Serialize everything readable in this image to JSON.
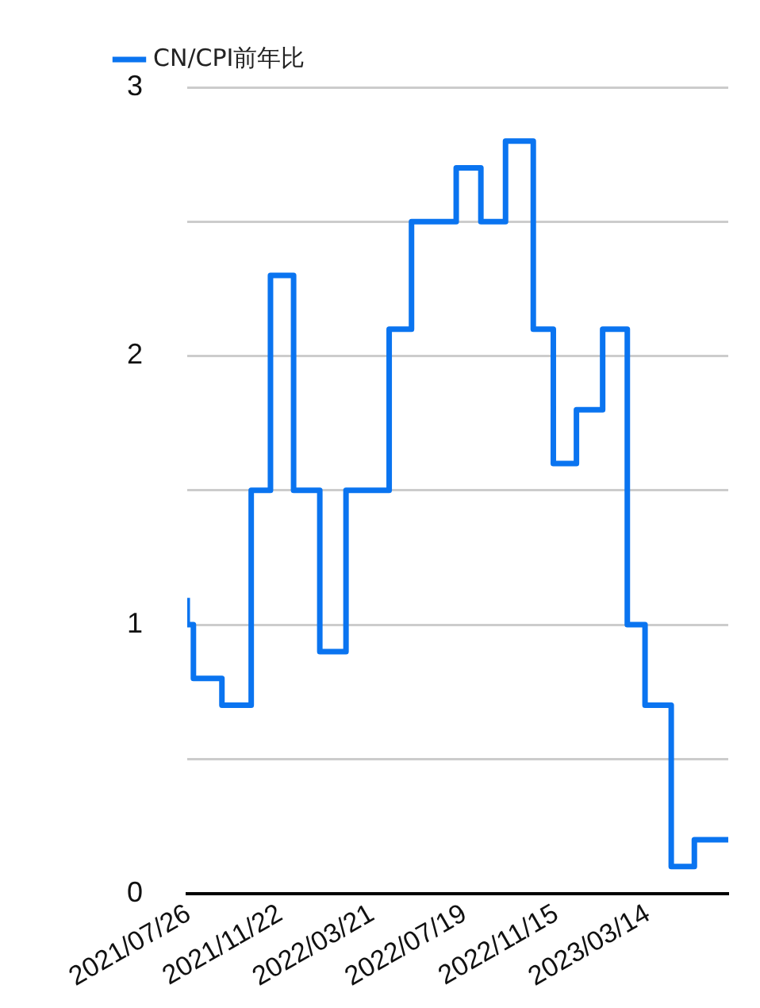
{
  "chart_data": {
    "type": "step",
    "x": [
      "2021-07-24",
      "2021-08-01",
      "2021-09-07",
      "2021-10-15",
      "2021-11-09",
      "2021-12-09",
      "2022-01-12",
      "2022-02-15",
      "2022-04-12",
      "2022-05-11",
      "2022-07-08",
      "2022-08-09",
      "2022-09-10",
      "2022-10-16",
      "2022-11-11",
      "2022-12-11",
      "2023-01-14",
      "2023-02-15",
      "2023-03-10",
      "2023-04-13",
      "2023-05-13",
      "2023-06-12",
      "2023-06-26"
    ],
    "series": [
      {
        "name": "CN/CPI前年比",
        "color": "#0a74f0",
        "values": [
          1.1,
          1.0,
          0.8,
          0.7,
          1.5,
          2.3,
          1.5,
          0.9,
          1.5,
          2.1,
          2.5,
          2.7,
          2.5,
          2.8,
          2.1,
          1.6,
          1.8,
          2.1,
          1.0,
          0.7,
          0.1,
          0.2,
          0.2
        ]
      }
    ],
    "xlim": [
      "2021-07-24",
      "2023-06-26"
    ],
    "xticks": [
      {
        "value": "2021-07-26",
        "label": "2021/07/26"
      },
      {
        "value": "2021-11-22",
        "label": "2021/11/22"
      },
      {
        "value": "2022-03-21",
        "label": "2022/03/21"
      },
      {
        "value": "2022-07-19",
        "label": "2022/07/19"
      },
      {
        "value": "2022-11-15",
        "label": "2022/11/15"
      },
      {
        "value": "2023-03-14",
        "label": "2023/03/14"
      }
    ],
    "ylim": [
      0,
      3
    ],
    "yticks": [
      0,
      {
        "value": 0.5,
        "label": null
      },
      1,
      {
        "value": 1.5,
        "label": null
      },
      2,
      {
        "value": 2.5,
        "label": null
      },
      3
    ],
    "grid": "y",
    "legend": "top left",
    "marker": "none",
    "line_style": "solid"
  }
}
